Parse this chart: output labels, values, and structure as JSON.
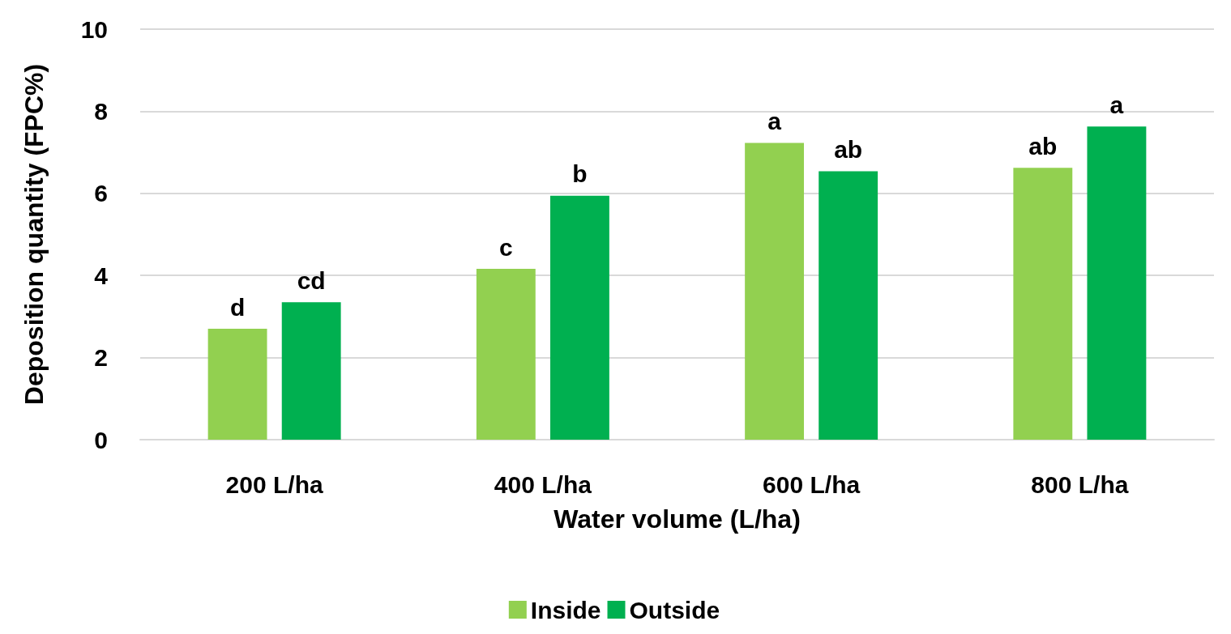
{
  "chart_data": {
    "type": "bar",
    "xlabel": "Water volume (L/ha)",
    "ylabel": "Deposition quantity (FPC%)",
    "categories": [
      "200 L/ha",
      "400 L/ha",
      "600 L/ha",
      "800 L/ha"
    ],
    "series": [
      {
        "name": "Inside",
        "color": "#92d050",
        "values": [
          2.7,
          4.16,
          7.23,
          6.62
        ],
        "value_labels": [
          "d",
          "c",
          "a",
          "ab"
        ]
      },
      {
        "name": "Outside",
        "color": "#00b050",
        "values": [
          3.35,
          5.94,
          6.54,
          7.63
        ],
        "value_labels": [
          "cd",
          "b",
          "ab",
          "a"
        ]
      }
    ],
    "ylim": [
      0,
      10
    ],
    "yticks": [
      0,
      2,
      4,
      6,
      8,
      10
    ],
    "grid": "y",
    "legend": "bottom"
  }
}
